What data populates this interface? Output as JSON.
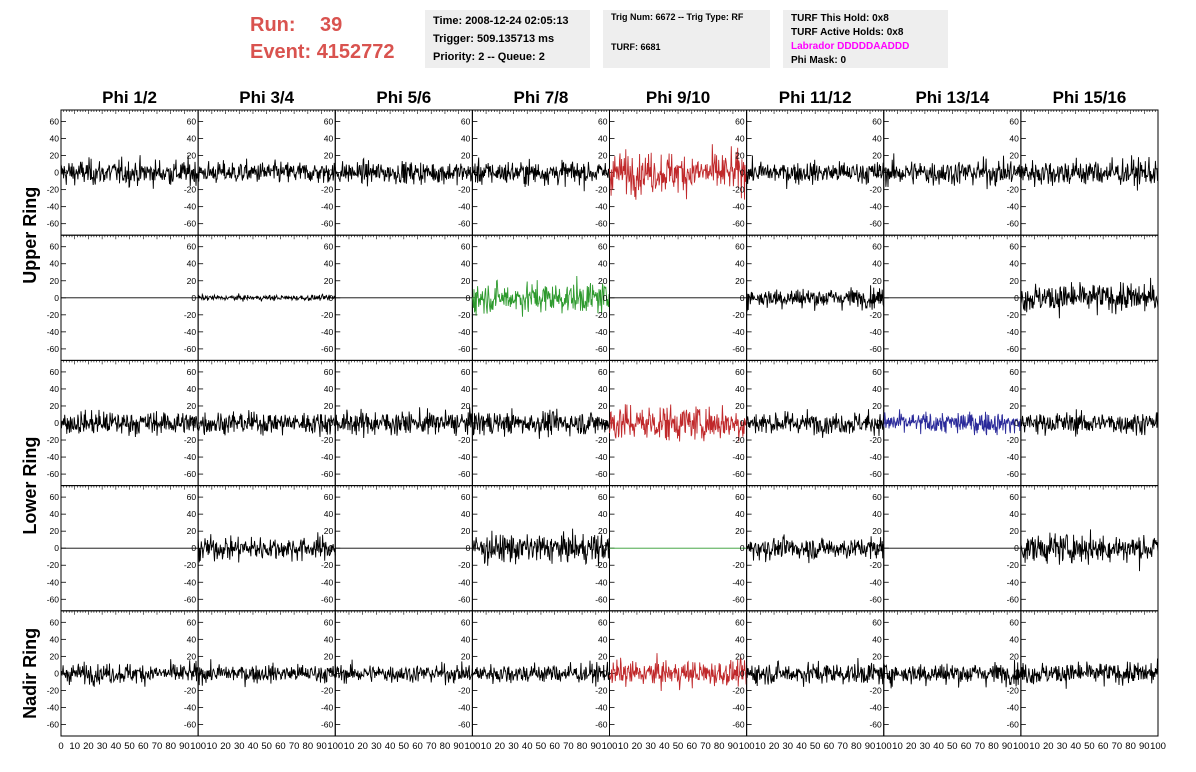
{
  "header": {
    "run_label": "Run:",
    "run_value": "39",
    "event_label": "Event:",
    "event_value": "4152772",
    "time": "Time: 2008-12-24 02:05:13",
    "trigger": "Trigger: 509.135713 ms",
    "priority": "Priority: 2 -- Queue: 2",
    "trig_num": "Trig Num: 6672 -- Trig Type: RF",
    "turf": "TURF: 6681",
    "turf_this_hold": "TURF This Hold: 0x8",
    "turf_active_holds": "TURF Active Holds: 0x8",
    "labrador": "Labrador DDDDDAADDD",
    "phi_mask": "Phi Mask: 0"
  },
  "chart_data": {
    "type": "line",
    "columns": [
      "Phi 1/2",
      "Phi 3/4",
      "Phi 5/6",
      "Phi 7/8",
      "Phi 9/10",
      "Phi 11/12",
      "Phi 13/14",
      "Phi 15/16"
    ],
    "ring_labels": [
      "Upper Ring",
      "Lower Ring",
      "Nadir Ring"
    ],
    "rows": 5,
    "xlim": [
      0,
      100
    ],
    "ylim": [
      -70,
      70
    ],
    "x_ticks": [
      0,
      10,
      20,
      30,
      40,
      50,
      60,
      70,
      80,
      90,
      100
    ],
    "y_ticks": [
      -60,
      -40,
      -20,
      0,
      20,
      40,
      60
    ],
    "colors": {
      "default": "#000000",
      "red": "#c0282a",
      "green": "#2e9a2e",
      "blue": "#2a2a9a"
    },
    "panels": [
      [
        "default",
        "default",
        "default",
        "default",
        "red",
        "default",
        "default",
        "default"
      ],
      [
        "flat",
        "small",
        "flat",
        "green",
        "flat",
        "default",
        "flat",
        "default"
      ],
      [
        "default",
        "default",
        "default",
        "default",
        "red",
        "default",
        "blue",
        "default"
      ],
      [
        "flat",
        "default",
        "flat",
        "default",
        "flatgreen",
        "default",
        "flat",
        "default"
      ],
      [
        "default",
        "default",
        "default",
        "default",
        "red",
        "default",
        "default",
        "default"
      ]
    ],
    "amplitudes": [
      [
        14,
        12,
        12,
        13,
        22,
        12,
        14,
        15
      ],
      [
        0,
        3,
        0,
        17,
        0,
        11,
        0,
        16
      ],
      [
        13,
        12,
        13,
        13,
        20,
        12,
        12,
        12
      ],
      [
        0,
        13,
        0,
        16,
        0,
        12,
        0,
        16
      ],
      [
        11,
        10,
        10,
        11,
        14,
        12,
        12,
        12
      ]
    ]
  }
}
